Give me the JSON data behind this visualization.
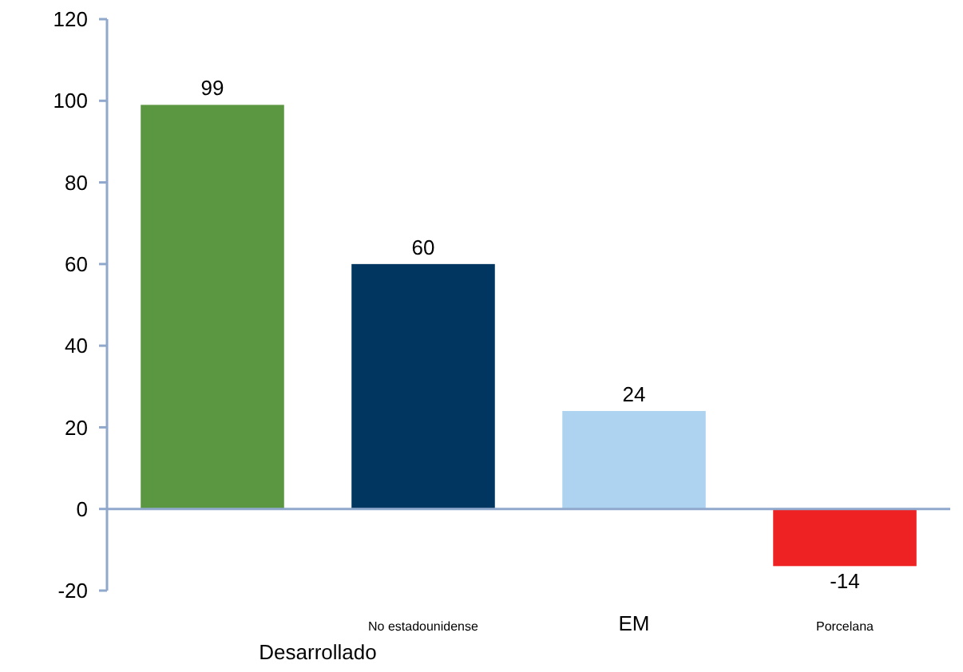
{
  "chart_data": {
    "type": "bar",
    "xlabel": "Desarrollado",
    "categories": [
      null,
      "No estadounidense",
      "EM",
      "Porcelana"
    ],
    "values": [
      99,
      60,
      24,
      -14
    ],
    "colors": [
      "#5b9640",
      "#003660",
      "#aed3f0",
      "#ee2222"
    ],
    "ylim": [
      -20,
      120
    ],
    "yticks": [
      -20,
      0,
      20,
      40,
      60,
      80,
      100,
      120
    ],
    "grid": false,
    "ref_lines": [
      {
        "axis": "y",
        "value": 0,
        "color": "#8fa8cc"
      }
    ],
    "data_labels": true
  }
}
